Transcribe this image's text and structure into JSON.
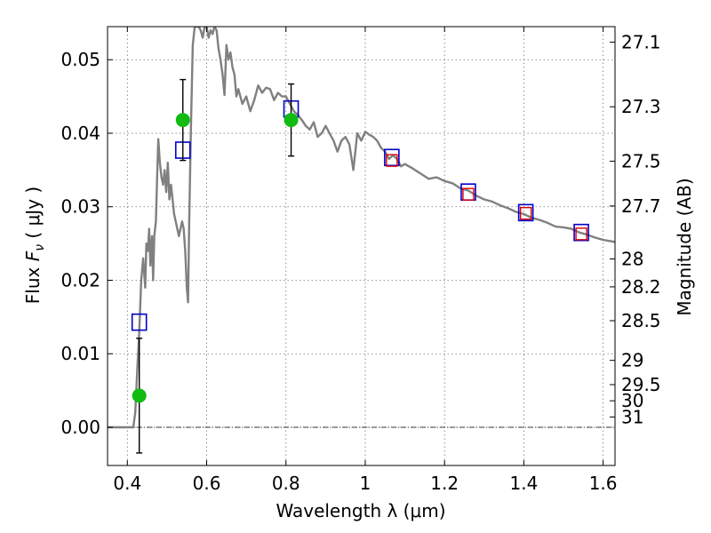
{
  "chart_data": {
    "type": "line",
    "xlabel": "Wavelength  λ (μm)",
    "ylabel": "Flux  F_ν  ( μJy )",
    "ylabel_parts": {
      "main": "Flux  ",
      "symbol": "F",
      "subscript": "ν",
      "unit": "  ( μJy )"
    },
    "y2label": "Magnitude (AB)",
    "xlim": [
      0.35,
      1.63
    ],
    "ylim": [
      -0.0052,
      0.0545
    ],
    "x_ticks": [
      0.4,
      0.6,
      0.8,
      1.0,
      1.2,
      1.4,
      1.6
    ],
    "x_tick_labels": [
      "0.4",
      "0.6",
      "0.8",
      "1",
      "1.2",
      "1.4",
      "1.6"
    ],
    "y_ticks": [
      0.0,
      0.01,
      0.02,
      0.03,
      0.04,
      0.05
    ],
    "y_tick_labels": [
      "0.00",
      "0.01",
      "0.02",
      "0.03",
      "0.04",
      "0.05"
    ],
    "y2_ticks": [
      {
        "label": "27.1",
        "flux": 0.0524
      },
      {
        "label": "27.3",
        "flux": 0.0436
      },
      {
        "label": "27.5",
        "flux": 0.0362
      },
      {
        "label": "27.7",
        "flux": 0.0301
      },
      {
        "label": "28",
        "flux": 0.0229
      },
      {
        "label": "28.2",
        "flux": 0.0191
      },
      {
        "label": "28.5",
        "flux": 0.0145
      },
      {
        "label": "29",
        "flux": 0.0091
      },
      {
        "label": "29.5",
        "flux": 0.0058
      },
      {
        "label": "30",
        "flux": 0.0036
      },
      {
        "label": "31",
        "flux": 0.0014
      }
    ],
    "grid": true,
    "colors": {
      "model": "#808080",
      "model_photometry": "#0000cc",
      "red_boxes": "#dd0000",
      "observed": "#11bb11",
      "errorbar": "#000000"
    },
    "series": [
      {
        "kind": "line",
        "x": [
          0.35,
          0.415,
          0.42,
          0.425,
          0.43,
          0.435,
          0.44,
          0.445,
          0.448,
          0.452,
          0.455,
          0.458,
          0.462,
          0.465,
          0.468,
          0.472,
          0.475,
          0.478,
          0.482,
          0.486,
          0.49,
          0.494,
          0.498,
          0.502,
          0.506,
          0.51,
          0.514,
          0.518,
          0.522,
          0.526,
          0.53,
          0.534,
          0.538,
          0.542,
          0.546,
          0.55,
          0.553,
          0.556,
          0.56,
          0.565,
          0.57,
          0.575,
          0.58,
          0.585,
          0.59,
          0.595,
          0.6,
          0.605,
          0.61,
          0.615,
          0.62,
          0.625,
          0.63,
          0.635,
          0.64,
          0.645,
          0.65,
          0.655,
          0.66,
          0.665,
          0.67,
          0.675,
          0.68,
          0.69,
          0.7,
          0.71,
          0.72,
          0.73,
          0.74,
          0.75,
          0.76,
          0.77,
          0.78,
          0.79,
          0.8,
          0.81,
          0.82,
          0.83,
          0.84,
          0.85,
          0.86,
          0.87,
          0.88,
          0.89,
          0.9,
          0.91,
          0.92,
          0.93,
          0.94,
          0.95,
          0.96,
          0.97,
          0.98,
          0.99,
          1.0,
          1.01,
          1.02,
          1.03,
          1.04,
          1.05,
          1.06,
          1.07,
          1.08,
          1.09,
          1.1,
          1.12,
          1.14,
          1.16,
          1.18,
          1.2,
          1.22,
          1.24,
          1.26,
          1.28,
          1.3,
          1.32,
          1.34,
          1.36,
          1.38,
          1.4,
          1.42,
          1.44,
          1.46,
          1.48,
          1.5,
          1.52,
          1.54,
          1.56,
          1.58,
          1.6,
          1.63
        ],
        "y": [
          0.0,
          0.0,
          0.002,
          0.008,
          0.013,
          0.02,
          0.023,
          0.019,
          0.025,
          0.024,
          0.027,
          0.022,
          0.026,
          0.02,
          0.026,
          0.028,
          0.034,
          0.0392,
          0.036,
          0.034,
          0.033,
          0.035,
          0.032,
          0.036,
          0.031,
          0.033,
          0.031,
          0.029,
          0.028,
          0.027,
          0.026,
          0.027,
          0.028,
          0.027,
          0.024,
          0.019,
          0.017,
          0.028,
          0.04,
          0.052,
          0.0545,
          0.055,
          0.055,
          0.054,
          0.053,
          0.055,
          0.0545,
          0.053,
          0.054,
          0.0535,
          0.055,
          0.054,
          0.0515,
          0.05,
          0.048,
          0.0452,
          0.052,
          0.05,
          0.051,
          0.049,
          0.048,
          0.045,
          0.046,
          0.044,
          0.045,
          0.043,
          0.0445,
          0.0465,
          0.0455,
          0.0462,
          0.046,
          0.0445,
          0.0455,
          0.045,
          0.045,
          0.044,
          0.043,
          0.0425,
          0.0418,
          0.041,
          0.0405,
          0.0415,
          0.0395,
          0.04,
          0.041,
          0.04,
          0.039,
          0.0375,
          0.039,
          0.0395,
          0.0385,
          0.035,
          0.04,
          0.039,
          0.0402,
          0.0398,
          0.0395,
          0.039,
          0.038,
          0.0375,
          0.0365,
          0.037,
          0.0365,
          0.0355,
          0.0358,
          0.0352,
          0.0345,
          0.0338,
          0.034,
          0.0335,
          0.0332,
          0.0325,
          0.0322,
          0.0315,
          0.031,
          0.0307,
          0.0302,
          0.0298,
          0.0293,
          0.029,
          0.0285,
          0.0282,
          0.0278,
          0.0273,
          0.0272,
          0.027,
          0.0265,
          0.0262,
          0.0258,
          0.0255,
          0.0252
        ]
      },
      {
        "kind": "squares",
        "color": "blue",
        "x": [
          0.43,
          0.54,
          0.813,
          1.067,
          1.26,
          1.405,
          1.545
        ],
        "y": [
          0.0143,
          0.0377,
          0.0433,
          0.0367,
          0.032,
          0.0292,
          0.0265
        ]
      },
      {
        "kind": "squares",
        "color": "red",
        "x": [
          1.067,
          1.26,
          1.405,
          1.545
        ],
        "y": [
          0.0363,
          0.0317,
          0.0291,
          0.0263
        ]
      },
      {
        "kind": "points",
        "color": "green",
        "x": [
          0.43,
          0.54,
          0.813
        ],
        "y": [
          0.0043,
          0.0418,
          0.0418
        ],
        "yerr": [
          0.0078,
          0.0055,
          0.0049
        ]
      }
    ]
  }
}
